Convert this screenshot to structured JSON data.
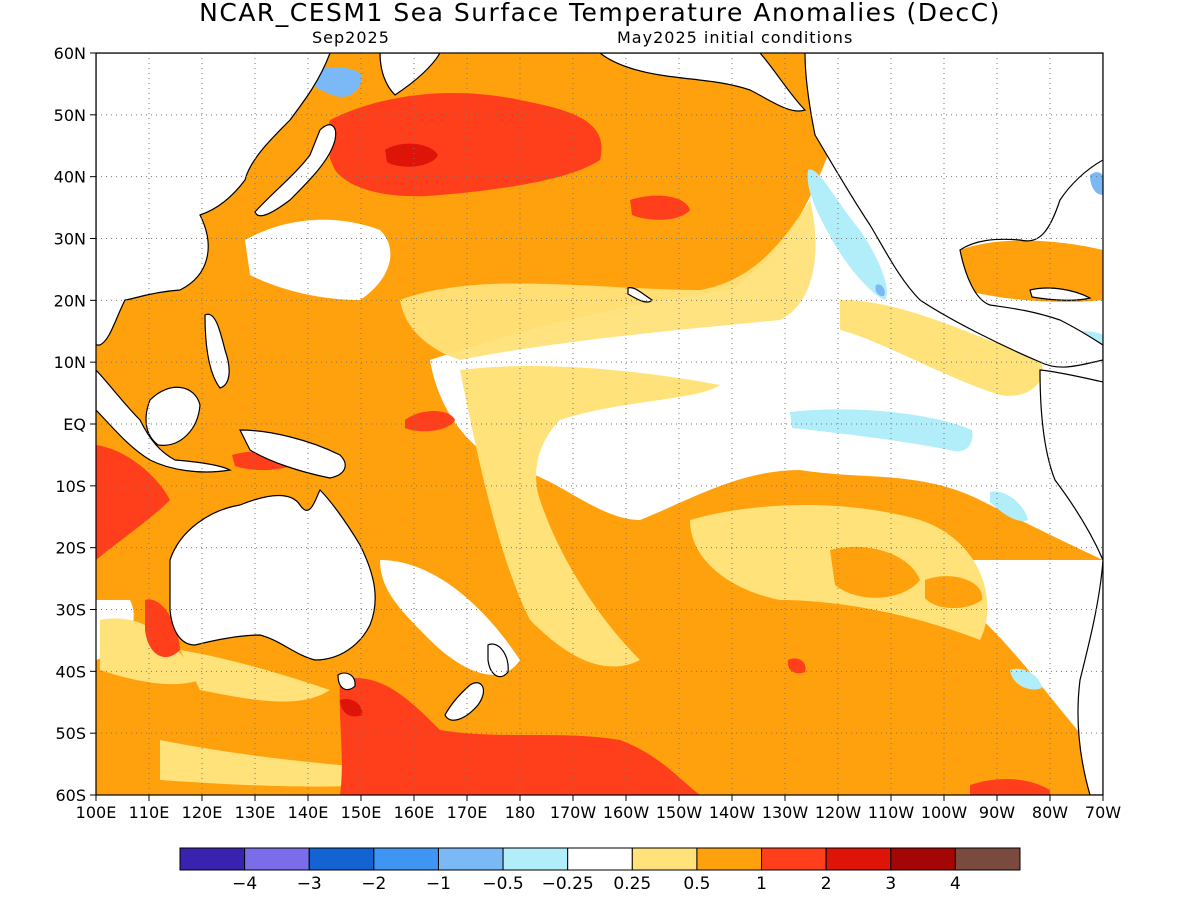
{
  "header": {
    "title": "NCAR_CESM1 Sea Surface Temperature Anomalies (DecC)",
    "valid_month": "Sep2025",
    "initial_conditions": "May2025 initial conditions"
  },
  "axes": {
    "longitudes": [
      "100E",
      "110E",
      "120E",
      "130E",
      "140E",
      "150E",
      "160E",
      "170E",
      "180",
      "170W",
      "160W",
      "150W",
      "140W",
      "130W",
      "120W",
      "110W",
      "100W",
      "90W",
      "80W",
      "70W"
    ],
    "latitudes": [
      "60N",
      "50N",
      "40N",
      "30N",
      "20N",
      "10N",
      "EQ",
      "10S",
      "20S",
      "30S",
      "40S",
      "50S",
      "60S"
    ],
    "lon_range": [
      100,
      290
    ],
    "lat_range": [
      -60,
      60
    ],
    "grid": "dotted"
  },
  "colorbar": {
    "colors": [
      "#3a22b0",
      "#7b6cea",
      "#1463d2",
      "#3f96f2",
      "#7ab8f6",
      "#b2eefa",
      "#ffffff",
      "#ffe27a",
      "#ffa10c",
      "#ff3f1c",
      "#df1409",
      "#a30605",
      "#7a4a3f"
    ],
    "labels": [
      "−4",
      "−3",
      "−2",
      "−1",
      "−0.5",
      "−0.25",
      "0.25",
      "0.5",
      "1",
      "2",
      "3",
      "4"
    ]
  },
  "map_palette": {
    "land": "#ffffff",
    "coast": "#000000",
    "near_zero": "#ffffff",
    "weak_positive": "#ffe27a",
    "moderate_positive": "#ffa10c",
    "strong_positive": "#ff3f1c",
    "very_strong_positive": "#df1409",
    "weak_negative": "#b2eefa",
    "moderate_negative": "#7ab8f6"
  }
}
